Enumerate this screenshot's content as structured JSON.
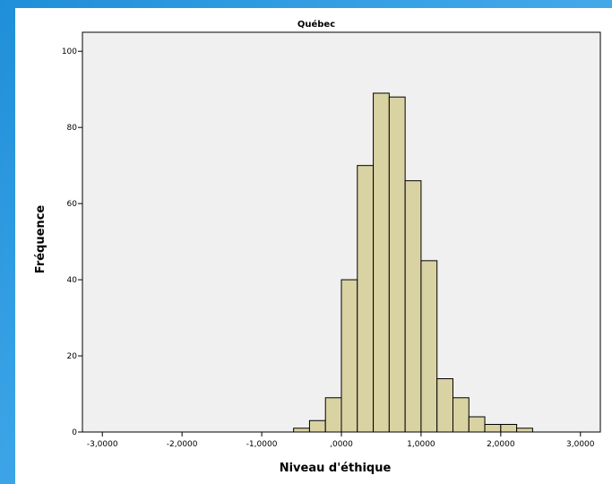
{
  "chart_data": {
    "type": "bar",
    "title": "Québec",
    "xlabel": "Niveau d'éthique",
    "ylabel": "Fréquence",
    "xlim": [
      -3.25,
      3.25
    ],
    "ylim": [
      0,
      105
    ],
    "xticks": [
      -3,
      -2,
      -1,
      0,
      1,
      2,
      3
    ],
    "xtick_labels": [
      "-3,0000",
      "-2,0000",
      "-1,0000",
      ",0000",
      "1,0000",
      "2,0000",
      "3,0000"
    ],
    "yticks": [
      0,
      20,
      40,
      60,
      80,
      100
    ],
    "ytick_labels": [
      "0",
      "20",
      "40",
      "60",
      "80",
      "100"
    ],
    "bin_width": 0.2,
    "bins": [
      {
        "start": -0.6,
        "value": 1
      },
      {
        "start": -0.4,
        "value": 3
      },
      {
        "start": -0.2,
        "value": 9
      },
      {
        "start": 0.0,
        "value": 40
      },
      {
        "start": 0.2,
        "value": 70
      },
      {
        "start": 0.4,
        "value": 89
      },
      {
        "start": 0.6,
        "value": 88
      },
      {
        "start": 0.8,
        "value": 66
      },
      {
        "start": 1.0,
        "value": 45
      },
      {
        "start": 1.2,
        "value": 14
      },
      {
        "start": 1.4,
        "value": 9
      },
      {
        "start": 1.6,
        "value": 4
      },
      {
        "start": 1.8,
        "value": 2
      },
      {
        "start": 2.0,
        "value": 2
      },
      {
        "start": 2.2,
        "value": 1
      }
    ],
    "grid": false,
    "colors": {
      "bar_fill": "#d9d3a3",
      "bar_stroke": "#000000",
      "plot_bg": "#f0f0f0"
    }
  }
}
